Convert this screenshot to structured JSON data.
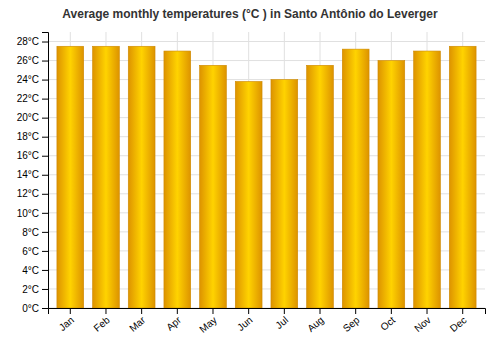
{
  "chart_data": {
    "type": "bar",
    "title": "Average monthly temperatures (°C ) in Santo Antônio do Leverger",
    "categories": [
      "Jan",
      "Feb",
      "Mar",
      "Apr",
      "May",
      "Jun",
      "Jul",
      "Aug",
      "Sep",
      "Oct",
      "Nov",
      "Dec"
    ],
    "values": [
      27.5,
      27.5,
      27.5,
      27.0,
      25.5,
      23.8,
      24.0,
      25.5,
      27.2,
      26.0,
      27.0,
      27.5
    ],
    "color": "#FFAA00",
    "ylim": [
      0,
      29
    ],
    "yticks": [
      {
        "value": 0,
        "label": "0°C"
      },
      {
        "value": 2,
        "label": "2°C"
      },
      {
        "value": 4,
        "label": "4°C"
      },
      {
        "value": 6,
        "label": "6°C"
      },
      {
        "value": 8,
        "label": "8°C"
      },
      {
        "value": 10,
        "label": "10°C"
      },
      {
        "value": 12,
        "label": "12°C"
      },
      {
        "value": 14,
        "label": "14°C"
      },
      {
        "value": 16,
        "label": "16°C"
      },
      {
        "value": 18,
        "label": "18°C"
      },
      {
        "value": 20,
        "label": "20°C"
      },
      {
        "value": 22,
        "label": "22°C"
      },
      {
        "value": 24,
        "label": "24°C"
      },
      {
        "value": 26,
        "label": "26°C"
      },
      {
        "value": 28,
        "label": "28°C"
      }
    ],
    "grid": true
  }
}
